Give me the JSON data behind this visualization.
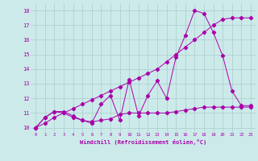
{
  "xlabel": "Windchill (Refroidissement éolien,°C)",
  "background_color": "#cceaea",
  "grid_color": "#aacccc",
  "line_color": "#aa00aa",
  "xlim": [
    -0.5,
    23.5
  ],
  "ylim": [
    9.7,
    18.5
  ],
  "yticks": [
    10,
    11,
    12,
    13,
    14,
    15,
    16,
    17,
    18
  ],
  "xticks": [
    0,
    1,
    2,
    3,
    4,
    5,
    6,
    7,
    8,
    9,
    10,
    11,
    12,
    13,
    14,
    15,
    16,
    17,
    18,
    19,
    20,
    21,
    22,
    23
  ],
  "series1_x": [
    0,
    1,
    2,
    3,
    4,
    5,
    6,
    7,
    8,
    9,
    10,
    11,
    12,
    13,
    14,
    15,
    16,
    17,
    18,
    19,
    20,
    21,
    22,
    23
  ],
  "series1_y": [
    10.0,
    10.7,
    11.1,
    11.0,
    10.7,
    10.5,
    10.3,
    11.6,
    12.2,
    10.5,
    13.3,
    10.8,
    12.2,
    13.2,
    12.0,
    14.8,
    16.3,
    18.0,
    17.8,
    16.5,
    14.9,
    12.5,
    11.5,
    11.5
  ],
  "series2_x": [
    0,
    1,
    2,
    3,
    4,
    5,
    6,
    7,
    8,
    9,
    10,
    11,
    12,
    13,
    14,
    15,
    16,
    17,
    18,
    19,
    20,
    21,
    22,
    23
  ],
  "series2_y": [
    10.0,
    10.3,
    10.7,
    11.0,
    11.3,
    11.6,
    11.9,
    12.2,
    12.5,
    12.8,
    13.1,
    13.4,
    13.7,
    14.0,
    14.5,
    15.0,
    15.5,
    16.0,
    16.5,
    17.0,
    17.4,
    17.5,
    17.5,
    17.5
  ],
  "series3_x": [
    0,
    1,
    2,
    3,
    4,
    5,
    6,
    7,
    8,
    9,
    10,
    11,
    12,
    13,
    14,
    15,
    16,
    17,
    18,
    19,
    20,
    21,
    22,
    23
  ],
  "series3_y": [
    10.0,
    10.7,
    11.1,
    11.1,
    10.8,
    10.5,
    10.4,
    10.5,
    10.6,
    10.9,
    11.0,
    11.0,
    11.0,
    11.0,
    11.0,
    11.1,
    11.2,
    11.3,
    11.4,
    11.4,
    11.4,
    11.4,
    11.4,
    11.4
  ]
}
